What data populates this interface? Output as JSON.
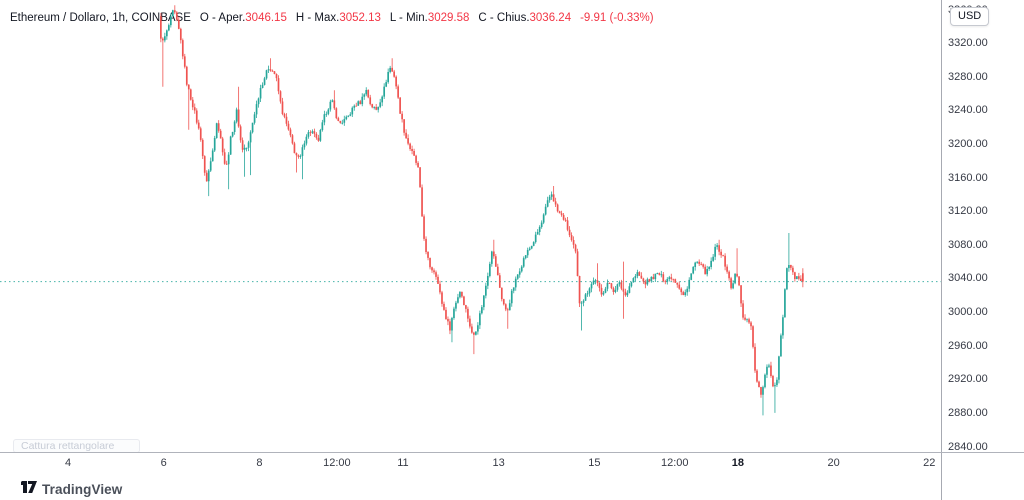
{
  "legend": {
    "symbol_title": "Ethereum / Dollaro, 1h, COINBASE",
    "separator": "-",
    "ohlc": [
      {
        "key": "O",
        "label": "Aper.",
        "value": "3046.15"
      },
      {
        "key": "H",
        "label": "Max.",
        "value": "3052.13"
      },
      {
        "key": "L",
        "label": "Min.",
        "value": "3029.58"
      },
      {
        "key": "C",
        "label": "Chius.",
        "value": "3036.24"
      }
    ],
    "change": "-9.91 (-0.33%)",
    "text_color": "#131722",
    "value_color": "#f23645"
  },
  "price_axis": {
    "currency_badge": "USD",
    "min": 2840,
    "max": 3360,
    "step": 40,
    "ticks": [
      "3360.00",
      "3320.00",
      "3280.00",
      "3240.00",
      "3200.00",
      "3160.00",
      "3120.00",
      "3080.00",
      "3040.00",
      "3000.00",
      "2960.00",
      "2920.00",
      "2880.00",
      "2840.00"
    ]
  },
  "time_axis": {
    "ticks": [
      {
        "label": "4",
        "day": 4
      },
      {
        "label": "6",
        "day": 6
      },
      {
        "label": "8",
        "day": 8
      },
      {
        "label": "12:00",
        "day": 9.62
      },
      {
        "label": "11",
        "day": 11
      },
      {
        "label": "13",
        "day": 13
      },
      {
        "label": "15",
        "day": 15
      },
      {
        "label": "12:00",
        "day": 16.68
      },
      {
        "label": "18",
        "day": 18,
        "bold": true
      },
      {
        "label": "20",
        "day": 20
      },
      {
        "label": "22",
        "day": 22
      }
    ]
  },
  "chart_data": {
    "type": "candlestick",
    "symbol": "Ethereum / Dollaro",
    "exchange": "COINBASE",
    "interval": "1h",
    "up_color": "#26a69a",
    "down_color": "#ef5350",
    "current_price": 3036.24,
    "price_line_color": "#26a69a",
    "last_candle": {
      "open": 3046.15,
      "high": 3052.13,
      "low": 3029.58,
      "close": 3036.24
    },
    "y_range": [
      2840,
      3360
    ],
    "data_start_day": 5.92,
    "data_end_day": 19.4,
    "price_path": [
      [
        5.92,
        3350
      ],
      [
        5.98,
        3318
      ],
      [
        6.09,
        3334
      ],
      [
        6.23,
        3360
      ],
      [
        6.36,
        3330
      ],
      [
        6.51,
        3270
      ],
      [
        6.65,
        3242
      ],
      [
        6.8,
        3206
      ],
      [
        6.9,
        3152
      ],
      [
        7.03,
        3186
      ],
      [
        7.13,
        3228
      ],
      [
        7.24,
        3198
      ],
      [
        7.32,
        3168
      ],
      [
        7.42,
        3206
      ],
      [
        7.55,
        3240
      ],
      [
        7.65,
        3194
      ],
      [
        7.78,
        3196
      ],
      [
        7.9,
        3232
      ],
      [
        8.05,
        3268
      ],
      [
        8.22,
        3292
      ],
      [
        8.36,
        3282
      ],
      [
        8.49,
        3240
      ],
      [
        8.64,
        3214
      ],
      [
        8.76,
        3190
      ],
      [
        8.86,
        3180
      ],
      [
        8.99,
        3210
      ],
      [
        9.11,
        3216
      ],
      [
        9.24,
        3202
      ],
      [
        9.39,
        3235
      ],
      [
        9.53,
        3252
      ],
      [
        9.68,
        3224
      ],
      [
        9.85,
        3230
      ],
      [
        10.01,
        3246
      ],
      [
        10.14,
        3250
      ],
      [
        10.24,
        3266
      ],
      [
        10.35,
        3246
      ],
      [
        10.47,
        3240
      ],
      [
        10.62,
        3264
      ],
      [
        10.74,
        3292
      ],
      [
        10.85,
        3280
      ],
      [
        10.95,
        3242
      ],
      [
        11.06,
        3212
      ],
      [
        11.16,
        3196
      ],
      [
        11.27,
        3182
      ],
      [
        11.35,
        3168
      ],
      [
        11.41,
        3120
      ],
      [
        11.49,
        3072
      ],
      [
        11.6,
        3052
      ],
      [
        11.7,
        3048
      ],
      [
        11.83,
        3012
      ],
      [
        11.93,
        2992
      ],
      [
        12.0,
        2980
      ],
      [
        12.1,
        3008
      ],
      [
        12.22,
        3026
      ],
      [
        12.35,
        3000
      ],
      [
        12.48,
        2970
      ],
      [
        12.58,
        2985
      ],
      [
        12.7,
        3015
      ],
      [
        12.81,
        3050
      ],
      [
        12.88,
        3075
      ],
      [
        12.98,
        3050
      ],
      [
        13.08,
        3018
      ],
      [
        13.19,
        2998
      ],
      [
        13.3,
        3024
      ],
      [
        13.44,
        3048
      ],
      [
        13.58,
        3068
      ],
      [
        13.72,
        3080
      ],
      [
        13.92,
        3106
      ],
      [
        14.04,
        3130
      ],
      [
        14.12,
        3142
      ],
      [
        14.25,
        3120
      ],
      [
        14.4,
        3110
      ],
      [
        14.5,
        3092
      ],
      [
        14.63,
        3070
      ],
      [
        14.71,
        3012
      ],
      [
        14.81,
        3016
      ],
      [
        14.92,
        3030
      ],
      [
        15.04,
        3040
      ],
      [
        15.17,
        3020
      ],
      [
        15.29,
        3035
      ],
      [
        15.42,
        3026
      ],
      [
        15.54,
        3034
      ],
      [
        15.67,
        3020
      ],
      [
        15.79,
        3036
      ],
      [
        15.92,
        3046
      ],
      [
        16.07,
        3034
      ],
      [
        16.21,
        3040
      ],
      [
        16.36,
        3046
      ],
      [
        16.48,
        3038
      ],
      [
        16.63,
        3042
      ],
      [
        16.76,
        3034
      ],
      [
        16.88,
        3020
      ],
      [
        16.96,
        3026
      ],
      [
        17.05,
        3050
      ],
      [
        17.15,
        3060
      ],
      [
        17.26,
        3054
      ],
      [
        17.36,
        3046
      ],
      [
        17.46,
        3058
      ],
      [
        17.57,
        3080
      ],
      [
        17.69,
        3068
      ],
      [
        17.8,
        3048
      ],
      [
        17.88,
        3028
      ],
      [
        17.96,
        3044
      ],
      [
        18.03,
        3040
      ],
      [
        18.11,
        2996
      ],
      [
        18.22,
        2990
      ],
      [
        18.3,
        2985
      ],
      [
        18.36,
        2938
      ],
      [
        18.42,
        2916
      ],
      [
        18.51,
        2900
      ],
      [
        18.59,
        2928
      ],
      [
        18.66,
        2942
      ],
      [
        18.74,
        2914
      ],
      [
        18.82,
        2912
      ],
      [
        18.88,
        2948
      ],
      [
        18.97,
        3000
      ],
      [
        19.05,
        3058
      ],
      [
        19.13,
        3050
      ],
      [
        19.22,
        3038
      ],
      [
        19.3,
        3042
      ],
      [
        19.4,
        3036.24
      ]
    ],
    "spikes": [
      [
        5.98,
        3268,
        "l"
      ],
      [
        6.23,
        3365,
        "h"
      ],
      [
        6.51,
        3217,
        "l"
      ],
      [
        6.9,
        3138,
        "l"
      ],
      [
        7.32,
        3146,
        "l"
      ],
      [
        7.55,
        3268,
        "h"
      ],
      [
        7.65,
        3161,
        "l"
      ],
      [
        7.78,
        3163,
        "l"
      ],
      [
        8.22,
        3302,
        "h"
      ],
      [
        8.76,
        3166,
        "l"
      ],
      [
        8.86,
        3158,
        "l"
      ],
      [
        9.53,
        3264,
        "h"
      ],
      [
        10.74,
        3302,
        "h"
      ],
      [
        12.0,
        2964,
        "l"
      ],
      [
        12.48,
        2950,
        "l"
      ],
      [
        12.88,
        3086,
        "h"
      ],
      [
        13.19,
        2980,
        "l"
      ],
      [
        14.12,
        3150,
        "h"
      ],
      [
        14.71,
        2978,
        "l"
      ],
      [
        15.04,
        3058,
        "h"
      ],
      [
        15.58,
        3060,
        "h"
      ],
      [
        15.6,
        2992,
        "l"
      ],
      [
        17.57,
        3086,
        "h"
      ],
      [
        17.96,
        3076,
        "h"
      ],
      [
        18.51,
        2877,
        "l"
      ],
      [
        18.74,
        2880,
        "l"
      ],
      [
        19.05,
        3094,
        "h"
      ]
    ]
  },
  "overlay": {
    "snip_tooltip": "Cattura rettangolare"
  },
  "footer": {
    "brand": "TradingView"
  }
}
